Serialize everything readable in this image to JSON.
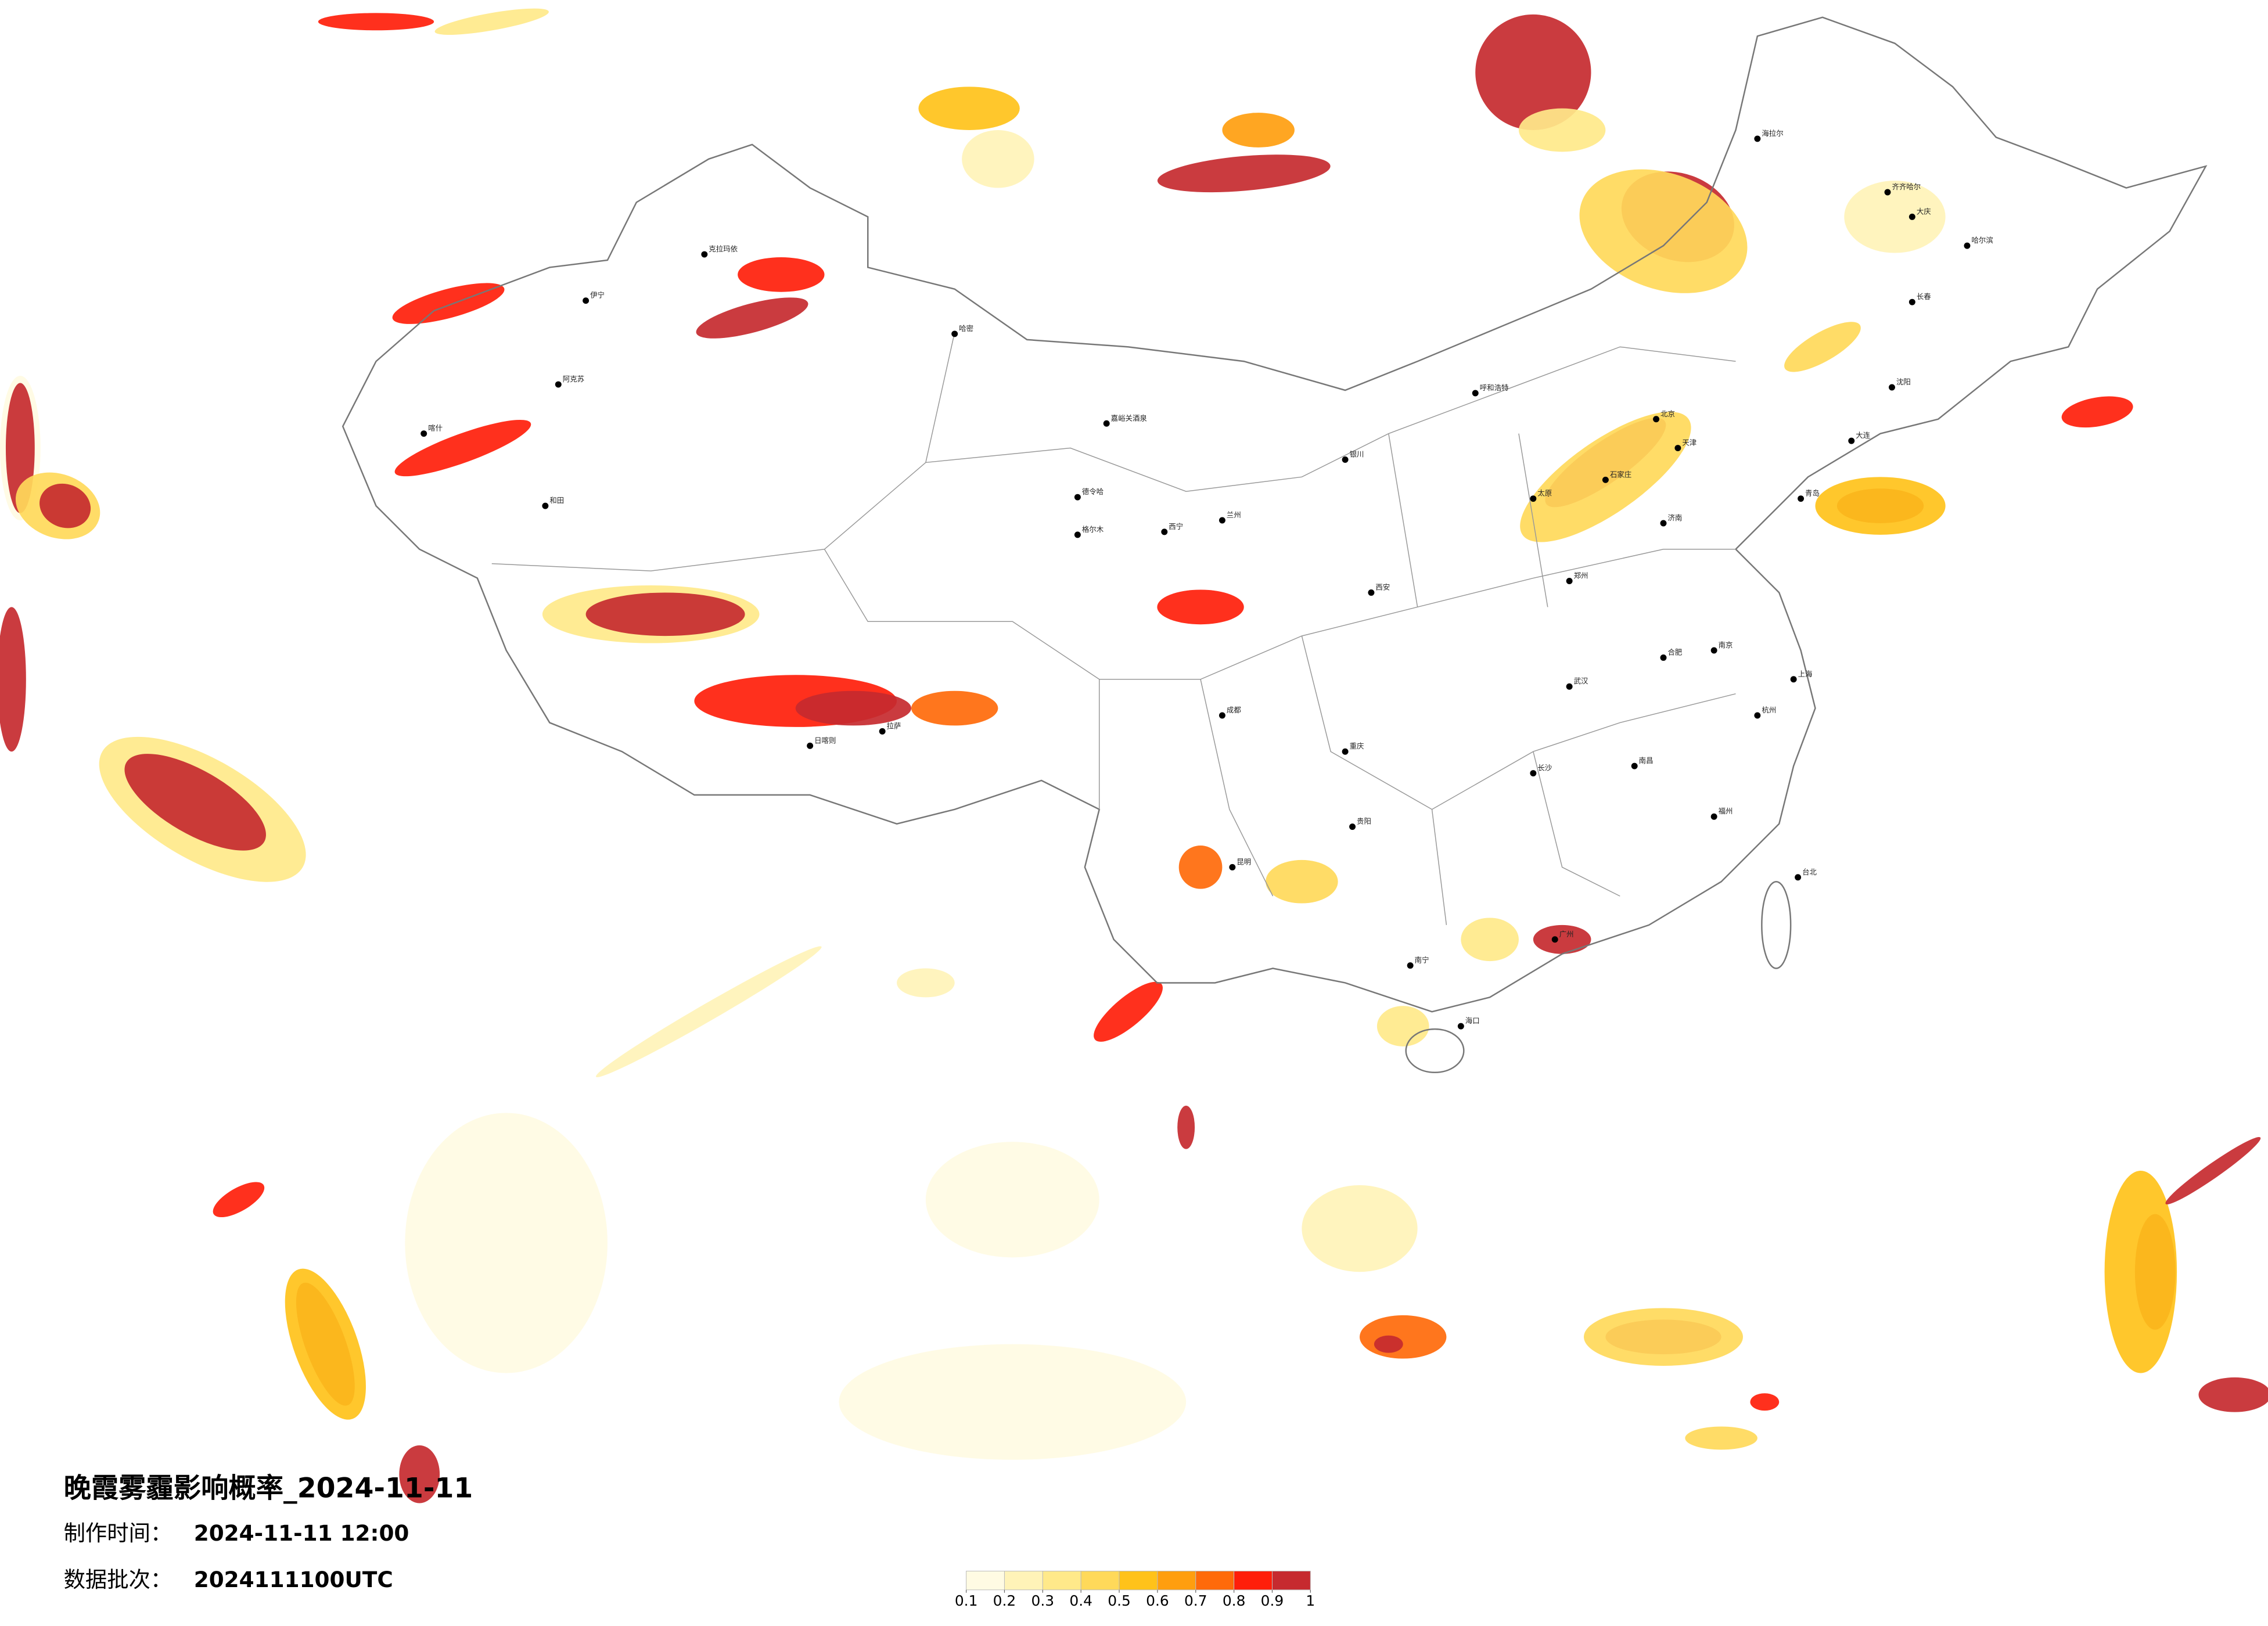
{
  "header": {
    "title": "晚霞雾霾影响概率_2024-11-11",
    "time_label": "制作时间：",
    "time": "2024-11-11 12:00",
    "batch_label": "数据批次：",
    "batch": "2024111100UTC"
  },
  "legend": {
    "ticks": [
      0.1,
      0.2,
      0.3,
      0.4,
      0.5,
      0.6,
      0.7,
      0.8,
      0.9,
      1
    ],
    "colors": [
      "#fffbe3",
      "#fff3b8",
      "#ffe98a",
      "#ffd95a",
      "#ffc21a",
      "#ff9e0f",
      "#ff6a0a",
      "#ff1e0a",
      "#c62a2f"
    ]
  },
  "cities": [
    "克拉玛依",
    "伊宁",
    "阿克苏",
    "喀什",
    "和田",
    "哈密",
    "嘉峪关酒泉",
    "德令哈",
    "格尔木",
    "日喀则",
    "拉萨",
    "海拉尔",
    "齐齐哈尔",
    "大庆",
    "哈尔滨",
    "长春",
    "沈阳",
    "大连",
    "北京",
    "天津",
    "石家庄",
    "太原",
    "呼和浩特",
    "银川",
    "兰州",
    "西宁",
    "西安",
    "郑州",
    "济南",
    "青岛",
    "南京",
    "上海",
    "杭州",
    "合肥",
    "武汉",
    "长沙",
    "南昌",
    "福州",
    "广州",
    "南宁",
    "昆明",
    "贵阳",
    "成都",
    "重庆",
    "海口",
    "台北"
  ]
}
